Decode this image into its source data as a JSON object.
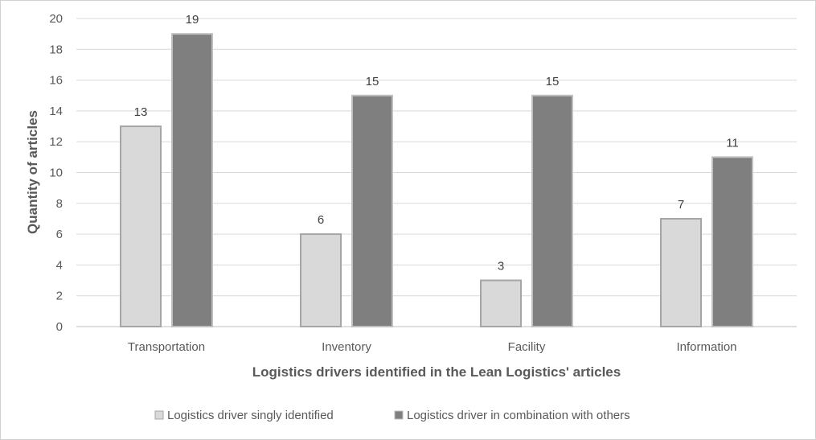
{
  "chart_data": {
    "type": "bar",
    "title": "",
    "xlabel": "Logistics drivers identified in the Lean Logistics' articles",
    "ylabel": "Quantity of articles",
    "categories": [
      "Transportation",
      "Inventory",
      "Facility",
      "Information"
    ],
    "series": [
      {
        "name": "Logistics driver singly identified",
        "values": [
          13,
          6,
          3,
          7
        ],
        "color": "#d9d9d9",
        "stroke": "#a6a6a6"
      },
      {
        "name": "Logistics driver in combination with others",
        "values": [
          19,
          15,
          15,
          11
        ],
        "color": "#7f7f7f",
        "stroke": "#bfbfbf"
      }
    ],
    "ylim": [
      0,
      20
    ],
    "yticks": [
      0,
      2,
      4,
      6,
      8,
      10,
      12,
      14,
      16,
      18,
      20
    ],
    "grid": true,
    "legend_position": "bottom",
    "data_labels": true
  }
}
